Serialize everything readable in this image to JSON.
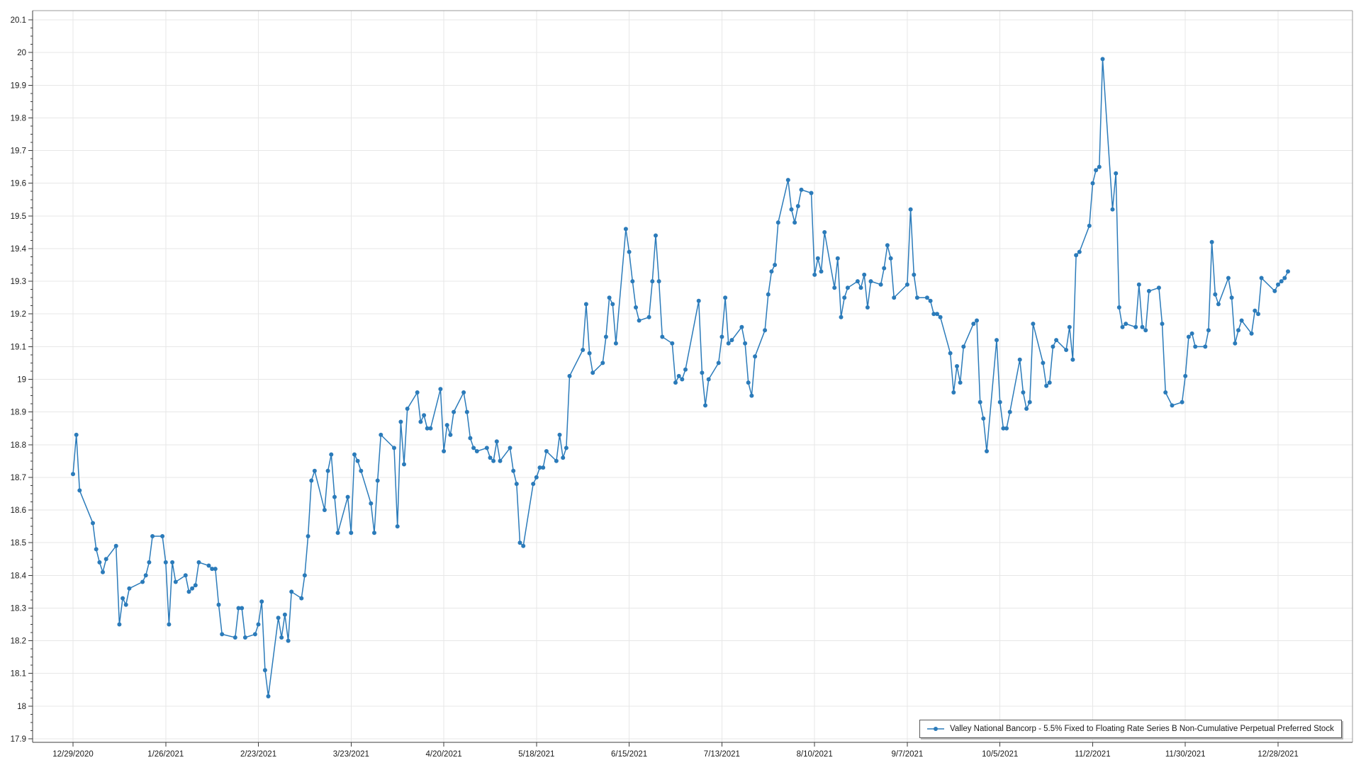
{
  "chart_data": {
    "type": "line",
    "title": "",
    "series_name": "Valley National Bancorp - 5.5% Fixed to Floating Rate Series B Non-Cumulative Perpetual Preferred Stock",
    "legend_position": "bottom-right",
    "grid": true,
    "marker": "circle",
    "line_color": "#2B7BBA",
    "grid_color": "#E7E7E7",
    "axis_color": "#3c3c3c",
    "border_color": "#9a9a9a",
    "y_axis": {
      "min": 17.9,
      "max": 20.1,
      "major_step": 0.1,
      "minor_step": 0.025
    },
    "x_axis": {
      "start": "12/29/2020",
      "end": "12/28/2021",
      "tick_interval_days": 28
    },
    "x_tick_labels": [
      "12/29/2020",
      "1/26/2021",
      "2/23/2021",
      "3/23/2021",
      "4/20/2021",
      "5/18/2021",
      "6/15/2021",
      "7/13/2021",
      "8/10/2021",
      "9/7/2021",
      "10/5/2021",
      "11/2/2021",
      "11/30/2021",
      "12/28/2021"
    ],
    "x": [
      "12/29/2020",
      "12/30/2020",
      "12/31/2020",
      "1/4/2021",
      "1/5/2021",
      "1/6/2021",
      "1/7/2021",
      "1/8/2021",
      "1/11/2021",
      "1/12/2021",
      "1/13/2021",
      "1/14/2021",
      "1/15/2021",
      "1/19/2021",
      "1/20/2021",
      "1/21/2021",
      "1/22/2021",
      "1/25/2021",
      "1/26/2021",
      "1/27/2021",
      "1/28/2021",
      "1/29/2021",
      "2/1/2021",
      "2/2/2021",
      "2/3/2021",
      "2/4/2021",
      "2/5/2021",
      "2/8/2021",
      "2/9/2021",
      "2/10/2021",
      "2/11/2021",
      "2/12/2021",
      "2/16/2021",
      "2/17/2021",
      "2/18/2021",
      "2/19/2021",
      "2/22/2021",
      "2/23/2021",
      "2/24/2021",
      "2/25/2021",
      "2/26/2021",
      "3/1/2021",
      "3/2/2021",
      "3/3/2021",
      "3/4/2021",
      "3/5/2021",
      "3/8/2021",
      "3/9/2021",
      "3/10/2021",
      "3/11/2021",
      "3/12/2021",
      "3/15/2021",
      "3/16/2021",
      "3/17/2021",
      "3/18/2021",
      "3/19/2021",
      "3/22/2021",
      "3/23/2021",
      "3/24/2021",
      "3/25/2021",
      "3/26/2021",
      "3/29/2021",
      "3/30/2021",
      "3/31/2021",
      "4/1/2021",
      "4/5/2021",
      "4/6/2021",
      "4/7/2021",
      "4/8/2021",
      "4/9/2021",
      "4/12/2021",
      "4/13/2021",
      "4/14/2021",
      "4/15/2021",
      "4/16/2021",
      "4/19/2021",
      "4/20/2021",
      "4/21/2021",
      "4/22/2021",
      "4/23/2021",
      "4/26/2021",
      "4/27/2021",
      "4/28/2021",
      "4/29/2021",
      "4/30/2021",
      "5/3/2021",
      "5/4/2021",
      "5/5/2021",
      "5/6/2021",
      "5/7/2021",
      "5/10/2021",
      "5/11/2021",
      "5/12/2021",
      "5/13/2021",
      "5/14/2021",
      "5/17/2021",
      "5/18/2021",
      "5/19/2021",
      "5/20/2021",
      "5/21/2021",
      "5/24/2021",
      "5/25/2021",
      "5/26/2021",
      "5/27/2021",
      "5/28/2021",
      "6/1/2021",
      "6/2/2021",
      "6/3/2021",
      "6/4/2021",
      "6/7/2021",
      "6/8/2021",
      "6/9/2021",
      "6/10/2021",
      "6/11/2021",
      "6/14/2021",
      "6/15/2021",
      "6/16/2021",
      "6/17/2021",
      "6/18/2021",
      "6/21/2021",
      "6/22/2021",
      "6/23/2021",
      "6/24/2021",
      "6/25/2021",
      "6/28/2021",
      "6/29/2021",
      "6/30/2021",
      "7/1/2021",
      "7/2/2021",
      "7/6/2021",
      "7/7/2021",
      "7/8/2021",
      "7/9/2021",
      "7/12/2021",
      "7/13/2021",
      "7/14/2021",
      "7/15/2021",
      "7/16/2021",
      "7/19/2021",
      "7/20/2021",
      "7/21/2021",
      "7/22/2021",
      "7/23/2021",
      "7/26/2021",
      "7/27/2021",
      "7/28/2021",
      "7/29/2021",
      "7/30/2021",
      "8/2/2021",
      "8/3/2021",
      "8/4/2021",
      "8/5/2021",
      "8/6/2021",
      "8/9/2021",
      "8/10/2021",
      "8/11/2021",
      "8/12/2021",
      "8/13/2021",
      "8/16/2021",
      "8/17/2021",
      "8/18/2021",
      "8/19/2021",
      "8/20/2021",
      "8/23/2021",
      "8/24/2021",
      "8/25/2021",
      "8/26/2021",
      "8/27/2021",
      "8/30/2021",
      "8/31/2021",
      "9/1/2021",
      "9/2/2021",
      "9/3/2021",
      "9/7/2021",
      "9/8/2021",
      "9/9/2021",
      "9/10/2021",
      "9/13/2021",
      "9/14/2021",
      "9/15/2021",
      "9/16/2021",
      "9/17/2021",
      "9/20/2021",
      "9/21/2021",
      "9/22/2021",
      "9/23/2021",
      "9/24/2021",
      "9/27/2021",
      "9/28/2021",
      "9/29/2021",
      "9/30/2021",
      "10/1/2021",
      "10/4/2021",
      "10/5/2021",
      "10/6/2021",
      "10/7/2021",
      "10/8/2021",
      "10/11/2021",
      "10/12/2021",
      "10/13/2021",
      "10/14/2021",
      "10/15/2021",
      "10/18/2021",
      "10/19/2021",
      "10/20/2021",
      "10/21/2021",
      "10/22/2021",
      "10/25/2021",
      "10/26/2021",
      "10/27/2021",
      "10/28/2021",
      "10/29/2021",
      "11/1/2021",
      "11/2/2021",
      "11/3/2021",
      "11/4/2021",
      "11/5/2021",
      "11/8/2021",
      "11/9/2021",
      "11/10/2021",
      "11/11/2021",
      "11/12/2021",
      "11/15/2021",
      "11/16/2021",
      "11/17/2021",
      "11/18/2021",
      "11/19/2021",
      "11/22/2021",
      "11/23/2021",
      "11/24/2021",
      "11/26/2021",
      "11/29/2021",
      "11/30/2021",
      "12/1/2021",
      "12/2/2021",
      "12/3/2021",
      "12/6/2021",
      "12/7/2021",
      "12/8/2021",
      "12/9/2021",
      "12/10/2021",
      "12/13/2021",
      "12/14/2021",
      "12/15/2021",
      "12/16/2021",
      "12/17/2021",
      "12/20/2021",
      "12/21/2021",
      "12/22/2021",
      "12/23/2021",
      "12/27/2021",
      "12/28/2021",
      "12/29/2021",
      "12/30/2021",
      "12/31/2021"
    ],
    "values": [
      18.71,
      18.83,
      18.66,
      18.56,
      18.48,
      18.44,
      18.41,
      18.45,
      18.49,
      18.25,
      18.33,
      18.31,
      18.36,
      18.38,
      18.4,
      18.44,
      18.52,
      18.52,
      18.44,
      18.25,
      18.44,
      18.38,
      18.4,
      18.35,
      18.36,
      18.37,
      18.44,
      18.43,
      18.42,
      18.42,
      18.31,
      18.22,
      18.21,
      18.3,
      18.3,
      18.21,
      18.22,
      18.25,
      18.32,
      18.11,
      18.03,
      18.27,
      18.21,
      18.28,
      18.2,
      18.35,
      18.33,
      18.4,
      18.52,
      18.69,
      18.72,
      18.6,
      18.72,
      18.77,
      18.64,
      18.53,
      18.64,
      18.53,
      18.77,
      18.75,
      18.72,
      18.62,
      18.53,
      18.69,
      18.83,
      18.79,
      18.55,
      18.87,
      18.74,
      18.91,
      18.96,
      18.87,
      18.89,
      18.85,
      18.85,
      18.97,
      18.78,
      18.86,
      18.83,
      18.9,
      18.96,
      18.9,
      18.82,
      18.79,
      18.78,
      18.79,
      18.76,
      18.75,
      18.81,
      18.75,
      18.79,
      18.72,
      18.68,
      18.5,
      18.49,
      18.68,
      18.7,
      18.73,
      18.73,
      18.78,
      18.75,
      18.83,
      18.76,
      18.79,
      19.01,
      19.09,
      19.23,
      19.08,
      19.02,
      19.05,
      19.13,
      19.25,
      19.23,
      19.11,
      19.46,
      19.39,
      19.3,
      19.22,
      19.18,
      19.19,
      19.3,
      19.44,
      19.3,
      19.13,
      19.11,
      18.99,
      19.01,
      19.0,
      19.03,
      19.24,
      19.02,
      18.92,
      19.0,
      19.05,
      19.13,
      19.25,
      19.11,
      19.12,
      19.16,
      19.11,
      18.99,
      18.95,
      19.07,
      19.15,
      19.26,
      19.33,
      19.35,
      19.48,
      19.61,
      19.52,
      19.48,
      19.53,
      19.58,
      19.57,
      19.32,
      19.37,
      19.33,
      19.45,
      19.28,
      19.37,
      19.19,
      19.25,
      19.28,
      19.3,
      19.28,
      19.32,
      19.22,
      19.3,
      19.29,
      19.34,
      19.41,
      19.37,
      19.25,
      19.29,
      19.52,
      19.32,
      19.25,
      19.25,
      19.24,
      19.2,
      19.2,
      19.19,
      19.08,
      18.96,
      19.04,
      18.99,
      19.1,
      19.17,
      19.18,
      18.93,
      18.88,
      18.78,
      19.12,
      18.93,
      18.85,
      18.85,
      18.9,
      19.06,
      18.96,
      18.91,
      18.93,
      19.17,
      19.05,
      18.98,
      18.99,
      19.1,
      19.12,
      19.09,
      19.16,
      19.06,
      19.38,
      19.39,
      19.47,
      19.6,
      19.64,
      19.65,
      19.98,
      19.52,
      19.63,
      19.22,
      19.16,
      19.17,
      19.16,
      19.29,
      19.16,
      19.15,
      19.27,
      19.28,
      19.17,
      18.96,
      18.92,
      18.93,
      19.01,
      19.13,
      19.14,
      19.1,
      19.1,
      19.15,
      19.42,
      19.26,
      19.23,
      19.31,
      19.25,
      19.11,
      19.15,
      19.18,
      19.14,
      19.21,
      19.2,
      19.31,
      19.27,
      19.29,
      19.3,
      19.31,
      19.33
    ]
  }
}
